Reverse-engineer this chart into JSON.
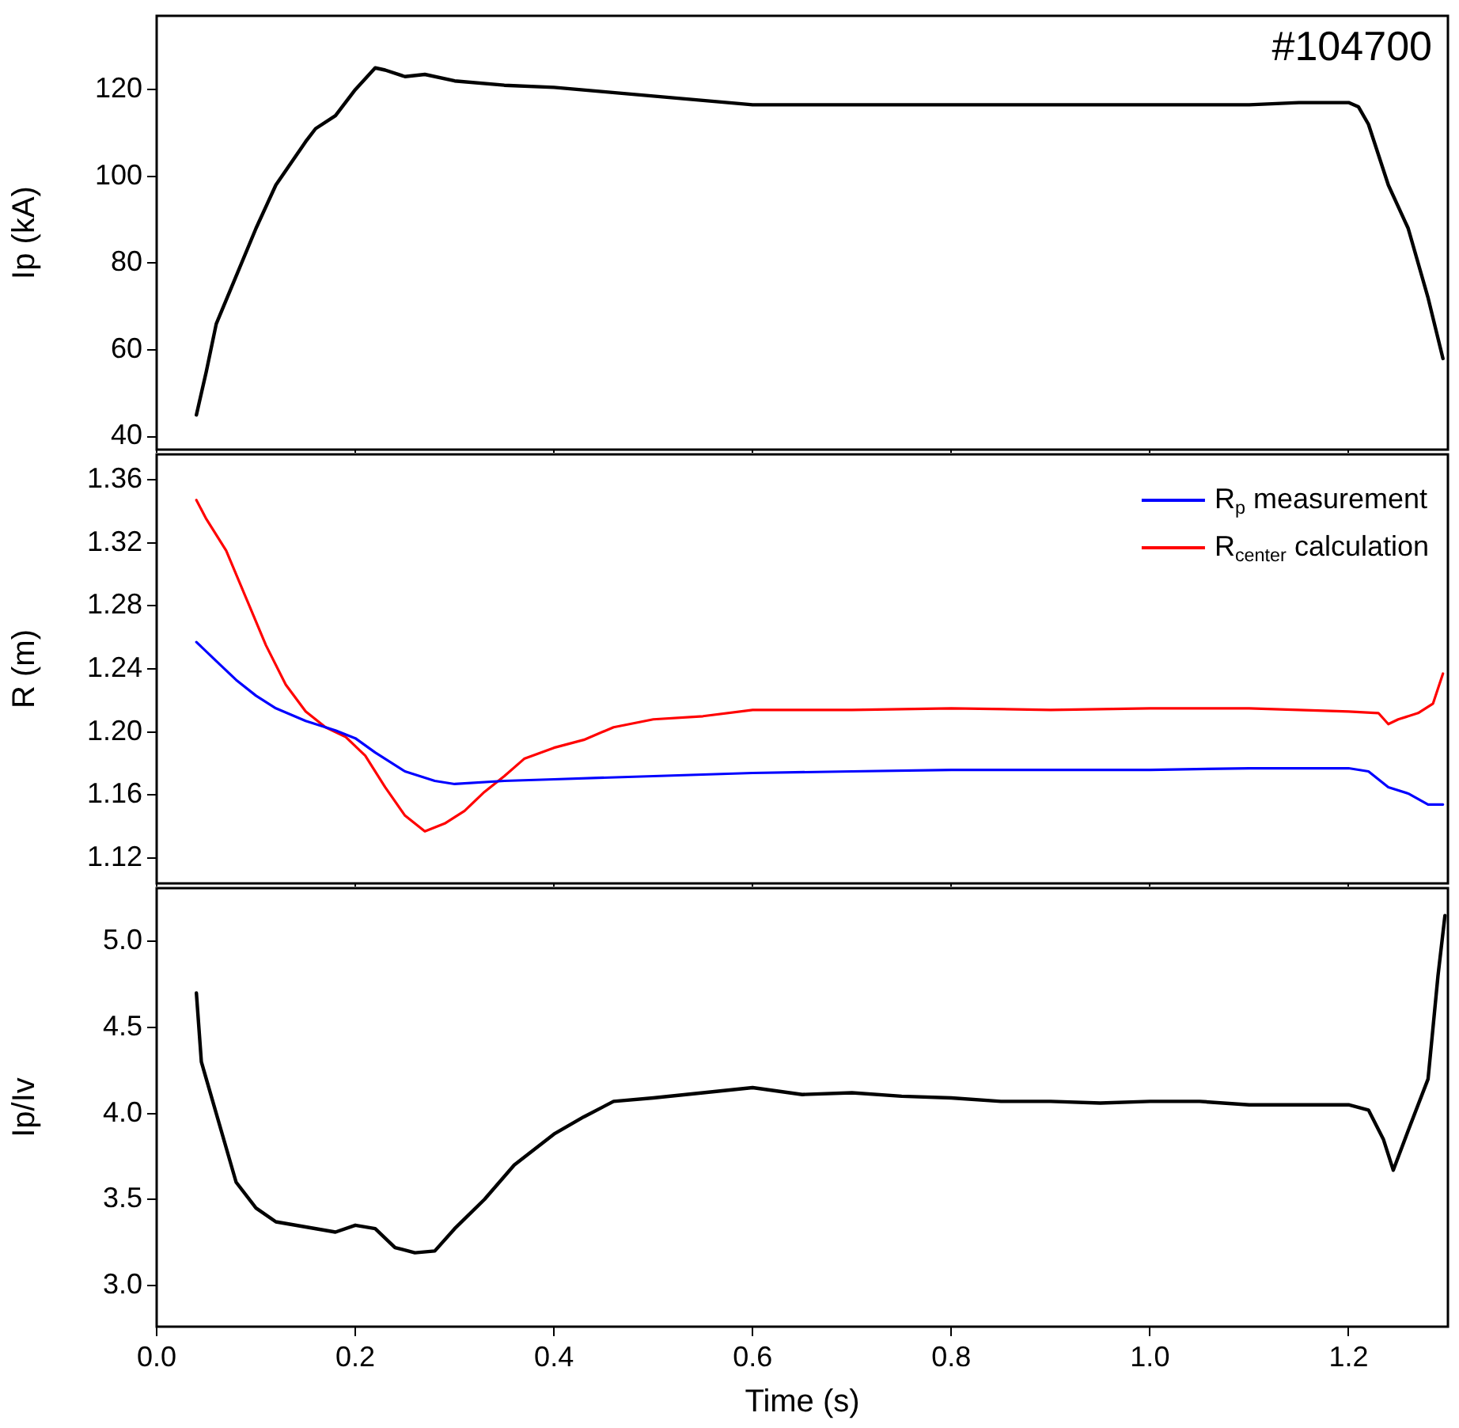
{
  "chart_data": [
    {
      "type": "line",
      "ylabel": "Ip (kA)",
      "annotations": [
        "#104700"
      ],
      "xlim": [
        0,
        1.3
      ],
      "ylim": [
        37,
        137
      ],
      "tick_labels": "y",
      "grid": false,
      "legend": false,
      "marker": "none",
      "line_style": "solid",
      "xticks": [
        {
          "value": 0,
          "label": null
        },
        {
          "value": 0.2,
          "label": null
        },
        {
          "value": 0.4,
          "label": null
        },
        {
          "value": 0.6,
          "label": null
        },
        {
          "value": 0.8,
          "label": null
        },
        {
          "value": 1,
          "label": null
        },
        {
          "value": 1.2,
          "label": null
        }
      ],
      "yticks": [
        40,
        60,
        80,
        100,
        120
      ],
      "series": [
        {
          "color": "#000000",
          "x": [
            0.04,
            0.05,
            0.06,
            0.08,
            0.1,
            0.12,
            0.15,
            0.16,
            0.18,
            0.2,
            0.22,
            0.23,
            0.25,
            0.27,
            0.3,
            0.35,
            0.4,
            0.45,
            0.5,
            0.55,
            0.6,
            0.7,
            0.8,
            0.9,
            1.0,
            1.1,
            1.15,
            1.2,
            1.21,
            1.22,
            1.24,
            1.26,
            1.28,
            1.295
          ],
          "values": [
            45,
            55,
            66,
            77,
            88,
            98,
            108,
            111,
            114,
            120,
            125,
            124.5,
            123,
            123.5,
            122,
            121,
            120.5,
            119.5,
            118.5,
            117.5,
            116.5,
            116.5,
            116.5,
            116.5,
            116.5,
            116.5,
            117,
            117,
            116,
            112,
            98,
            88,
            72,
            58
          ]
        }
      ]
    },
    {
      "type": "line",
      "ylabel": "R (m)",
      "xlim": [
        0,
        1.3
      ],
      "ylim": [
        1.104,
        1.376
      ],
      "tick_labels": "y",
      "grid": false,
      "legend": "top right",
      "marker": "none",
      "line_style": "solid",
      "xticks": [
        {
          "value": 0,
          "label": null
        },
        {
          "value": 0.2,
          "label": null
        },
        {
          "value": 0.4,
          "label": null
        },
        {
          "value": 0.6,
          "label": null
        },
        {
          "value": 0.8,
          "label": null
        },
        {
          "value": 1,
          "label": null
        },
        {
          "value": 1.2,
          "label": null
        }
      ],
      "yticks": [
        1.12,
        1.16,
        {
          "value": 1.2,
          "label": "1.20"
        },
        1.24,
        1.28,
        1.32,
        1.36
      ],
      "series": [
        {
          "name": "R$_{p}$ measurement",
          "color": "#0000ff",
          "x": [
            0.04,
            0.06,
            0.08,
            0.1,
            0.12,
            0.15,
            0.18,
            0.2,
            0.22,
            0.25,
            0.28,
            0.3,
            0.35,
            0.4,
            0.5,
            0.6,
            0.7,
            0.8,
            0.9,
            1.0,
            1.1,
            1.2,
            1.22,
            1.24,
            1.26,
            1.28,
            1.295
          ],
          "values": [
            1.257,
            1.245,
            1.233,
            1.223,
            1.215,
            1.207,
            1.201,
            1.196,
            1.187,
            1.175,
            1.169,
            1.167,
            1.169,
            1.17,
            1.172,
            1.174,
            1.175,
            1.176,
            1.176,
            1.176,
            1.177,
            1.177,
            1.175,
            1.165,
            1.161,
            1.154,
            1.154
          ]
        },
        {
          "name": "R$_{center}$ calculation",
          "color": "#ff0000",
          "x": [
            0.04,
            0.05,
            0.07,
            0.09,
            0.11,
            0.13,
            0.15,
            0.17,
            0.19,
            0.21,
            0.23,
            0.25,
            0.27,
            0.29,
            0.31,
            0.33,
            0.35,
            0.37,
            0.4,
            0.43,
            0.46,
            0.5,
            0.55,
            0.6,
            0.7,
            0.8,
            0.9,
            1.0,
            1.1,
            1.2,
            1.23,
            1.24,
            1.25,
            1.27,
            1.285,
            1.295
          ],
          "values": [
            1.347,
            1.335,
            1.315,
            1.285,
            1.255,
            1.23,
            1.213,
            1.203,
            1.197,
            1.185,
            1.165,
            1.147,
            1.137,
            1.142,
            1.15,
            1.162,
            1.172,
            1.183,
            1.19,
            1.195,
            1.203,
            1.208,
            1.21,
            1.214,
            1.214,
            1.215,
            1.214,
            1.215,
            1.215,
            1.213,
            1.212,
            1.205,
            1.208,
            1.212,
            1.218,
            1.237
          ]
        }
      ]
    },
    {
      "type": "line",
      "ylabel": "Ip/Iv",
      "xlabel": "Time (s)",
      "xlim": [
        0,
        1.3
      ],
      "ylim": [
        2.76,
        5.31
      ],
      "grid": false,
      "legend": false,
      "marker": "none",
      "line_style": "solid",
      "xticks": [
        {
          "value": 0,
          "label": "0.0"
        },
        {
          "value": 0.2,
          "label": "0.2"
        },
        {
          "value": 0.4,
          "label": "0.4"
        },
        {
          "value": 0.6,
          "label": "0.6"
        },
        {
          "value": 0.8,
          "label": "0.8"
        },
        {
          "value": 1,
          "label": "1.0"
        },
        {
          "value": 1.2,
          "label": "1.2"
        }
      ],
      "yticks": [
        {
          "value": 3,
          "label": "3.0"
        },
        {
          "value": 3.5,
          "label": "3.5"
        },
        {
          "value": 4,
          "label": "4.0"
        },
        {
          "value": 4.5,
          "label": "4.5"
        },
        {
          "value": 5,
          "label": "5.0"
        }
      ],
      "series": [
        {
          "color": "#000000",
          "x": [
            0.04,
            0.045,
            0.06,
            0.08,
            0.1,
            0.12,
            0.15,
            0.18,
            0.2,
            0.22,
            0.24,
            0.26,
            0.28,
            0.3,
            0.33,
            0.36,
            0.4,
            0.43,
            0.46,
            0.5,
            0.55,
            0.6,
            0.65,
            0.7,
            0.75,
            0.8,
            0.85,
            0.9,
            0.95,
            1.0,
            1.05,
            1.1,
            1.15,
            1.2,
            1.22,
            1.235,
            1.245,
            1.26,
            1.28,
            1.29,
            1.297
          ],
          "values": [
            4.7,
            4.3,
            4.0,
            3.6,
            3.45,
            3.37,
            3.34,
            3.31,
            3.35,
            3.33,
            3.22,
            3.19,
            3.2,
            3.33,
            3.5,
            3.7,
            3.88,
            3.98,
            4.07,
            4.09,
            4.12,
            4.15,
            4.11,
            4.12,
            4.1,
            4.09,
            4.07,
            4.07,
            4.06,
            4.07,
            4.07,
            4.05,
            4.05,
            4.05,
            4.02,
            3.85,
            3.67,
            3.9,
            4.2,
            4.8,
            5.15
          ]
        }
      ]
    }
  ]
}
